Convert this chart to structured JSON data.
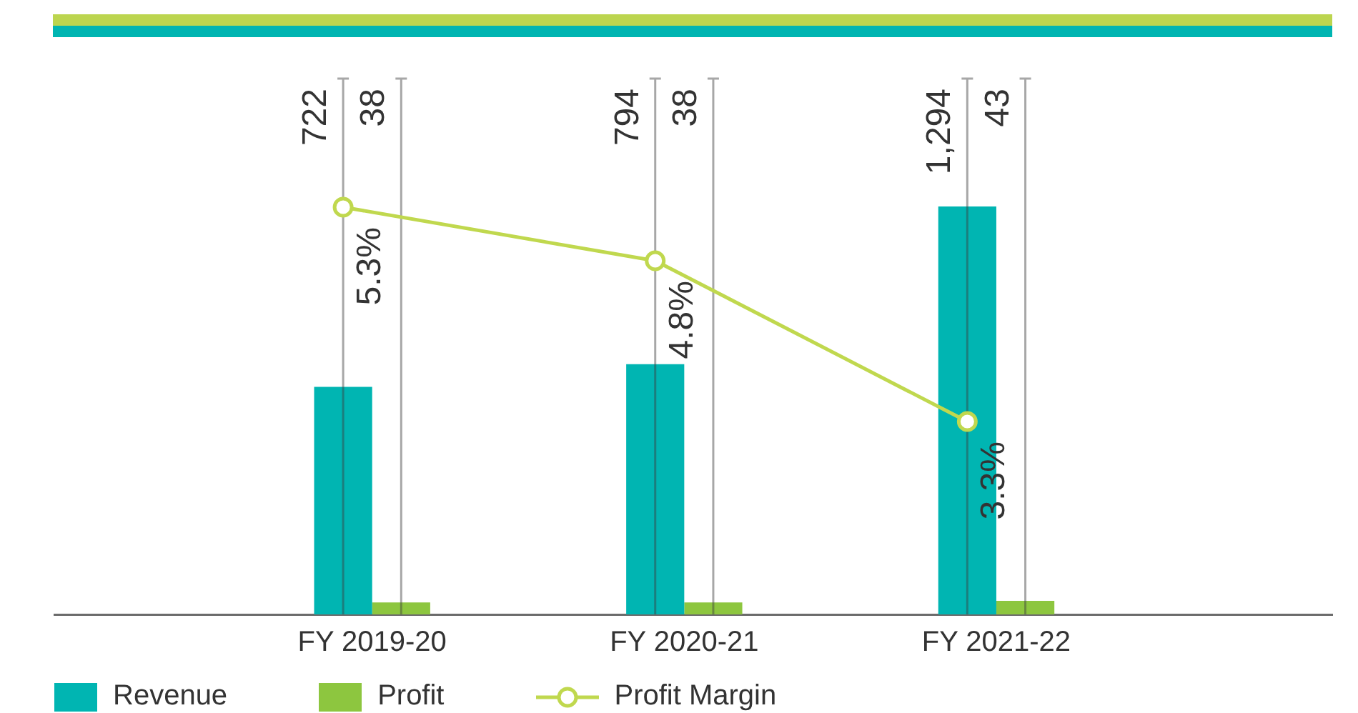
{
  "chart_data": {
    "type": "bar",
    "categories": [
      "FY 2019-20",
      "FY 2020-21",
      "FY 2021-22"
    ],
    "series": [
      {
        "name": "Revenue",
        "color": "#00b5b2",
        "values": [
          722,
          794,
          1294
        ],
        "value_labels": [
          "722",
          "794",
          "1,294"
        ]
      },
      {
        "name": "Profit",
        "color": "#8dc63f",
        "values": [
          38,
          38,
          43
        ],
        "value_labels": [
          "38",
          "38",
          "43"
        ]
      },
      {
        "name": "Profit Margin",
        "type": "line",
        "axis": "y2",
        "color": "#c0d84e",
        "marker": "circle",
        "values": [
          5.3,
          4.8,
          3.3
        ],
        "value_labels": [
          "5.3%",
          "4.8%",
          "3.3%"
        ]
      }
    ],
    "ylim": [
      0,
      1700
    ],
    "y2lim": [
      1.5,
      6.5
    ],
    "tick_labels": "x",
    "grid": false,
    "legend": "bottom left"
  }
}
